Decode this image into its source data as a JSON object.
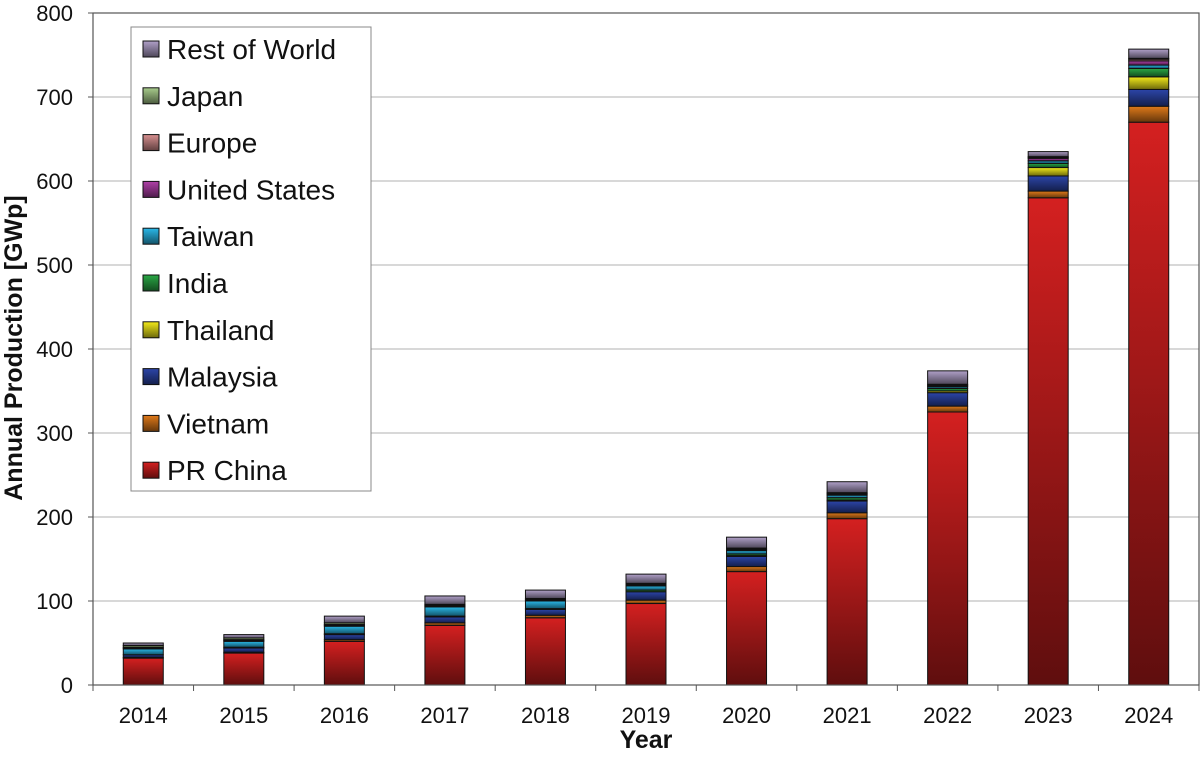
{
  "chart_data": {
    "type": "bar",
    "stacked": true,
    "title": "",
    "xlabel": "Year",
    "ylabel": "Annual Production [GWp]",
    "ylim": [
      0,
      800
    ],
    "yticks": [
      0,
      100,
      200,
      300,
      400,
      500,
      600,
      700,
      800
    ],
    "grid": true,
    "legend_position": "top-left",
    "categories": [
      "2014",
      "2015",
      "2016",
      "2017",
      "2018",
      "2019",
      "2020",
      "2021",
      "2022",
      "2023",
      "2024"
    ],
    "series": [
      {
        "name": "PR China",
        "color": "#d42020",
        "values": [
          32,
          38,
          52,
          71,
          80,
          97,
          135,
          198,
          325,
          580,
          670
        ]
      },
      {
        "name": "Vietnam",
        "color": "#e07a1a",
        "values": [
          1,
          1,
          2,
          3,
          3,
          4,
          6,
          7,
          7,
          8,
          19
        ]
      },
      {
        "name": "Malaysia",
        "color": "#2c45a8",
        "values": [
          3,
          5,
          6,
          7,
          7,
          10,
          12,
          14,
          16,
          18,
          20
        ]
      },
      {
        "name": "Thailand",
        "color": "#f2ea1a",
        "values": [
          0,
          0,
          0,
          0,
          0,
          0,
          1,
          1,
          2,
          10,
          15
        ]
      },
      {
        "name": "India",
        "color": "#2aa845",
        "values": [
          0,
          1,
          1,
          1,
          1,
          2,
          2,
          3,
          3,
          5,
          10
        ]
      },
      {
        "name": "Taiwan",
        "color": "#2ab8e8",
        "values": [
          7,
          7,
          9,
          11,
          9,
          5,
          4,
          3,
          2,
          3,
          4
        ]
      },
      {
        "name": "United States",
        "color": "#b040a8",
        "values": [
          1,
          1,
          1,
          1,
          1,
          1,
          1,
          1,
          1,
          3,
          5
        ]
      },
      {
        "name": "Europe",
        "color": "#d89090",
        "values": [
          1,
          1,
          1,
          1,
          1,
          1,
          1,
          1,
          1,
          1,
          2
        ]
      },
      {
        "name": "Japan",
        "color": "#a8cc8c",
        "values": [
          2,
          2,
          2,
          1,
          1,
          1,
          1,
          1,
          1,
          1,
          1
        ]
      },
      {
        "name": "Rest of World",
        "color": "#b0a0c8",
        "values": [
          3,
          4,
          8,
          10,
          10,
          11,
          13,
          13,
          16,
          6,
          11
        ]
      }
    ]
  }
}
